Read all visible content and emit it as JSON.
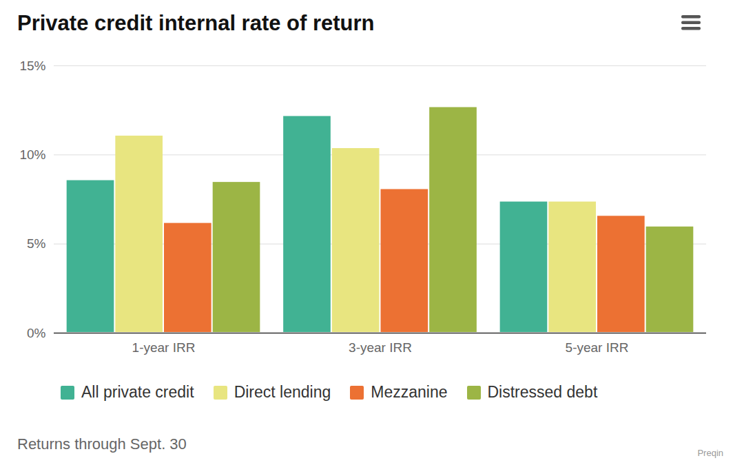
{
  "chart_data": {
    "type": "bar",
    "title": "Private credit internal rate of return",
    "caption": "Returns through Sept. 30",
    "source": "Preqin",
    "categories": [
      "1-year IRR",
      "3-year IRR",
      "5-year IRR"
    ],
    "series": [
      {
        "name": "All private credit",
        "color": "#41b293",
        "values": [
          8.6,
          12.2,
          7.4
        ]
      },
      {
        "name": "Direct lending",
        "color": "#e8e580",
        "values": [
          11.1,
          10.4,
          7.4
        ]
      },
      {
        "name": "Mezzanine",
        "color": "#ec7133",
        "values": [
          6.2,
          8.1,
          6.6
        ]
      },
      {
        "name": "Distressed debt",
        "color": "#9cb545",
        "values": [
          8.5,
          12.7,
          6.0
        ]
      }
    ],
    "ylim": [
      0,
      15
    ],
    "yticks": [
      {
        "value": 0,
        "label": "0%"
      },
      {
        "value": 5,
        "label": "5%"
      },
      {
        "value": 10,
        "label": "10%"
      },
      {
        "value": 15,
        "label": "15%"
      }
    ],
    "grid": true,
    "legend": "bottom"
  }
}
